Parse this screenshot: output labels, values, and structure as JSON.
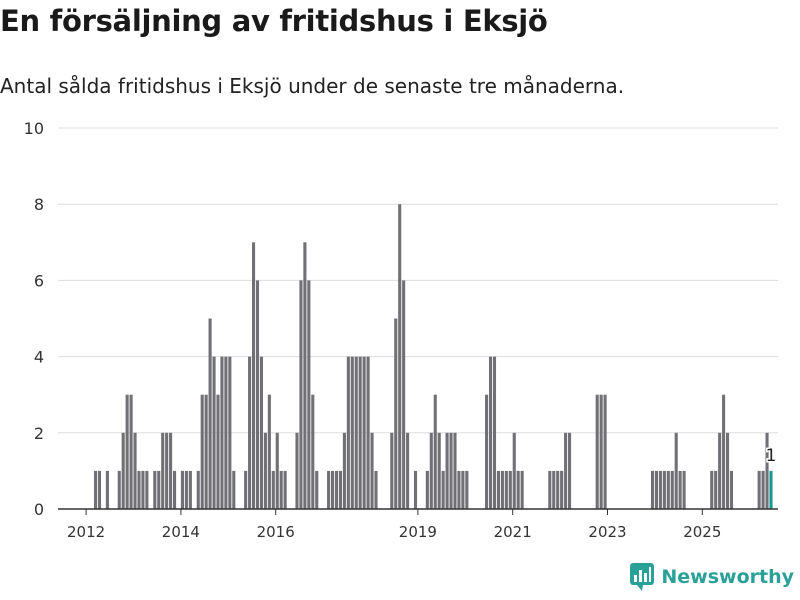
{
  "header": {
    "title": "En försäljning av fritidshus i Eksjö",
    "subtitle": "Antal sålda fritidshus i Eksjö under de senaste tre månaderna."
  },
  "brand": {
    "name": "Newsworthy",
    "icon": "newsworthy-logo-icon",
    "color": "#2aa198"
  },
  "colors": {
    "bar": "#717074",
    "highlight": "#17998f",
    "grid": "#dddddd",
    "axis": "#333333"
  },
  "chart_data": {
    "type": "bar",
    "title": "En försäljning av fritidshus i Eksjö",
    "subtitle": "Antal sålda fritidshus i Eksjö under de senaste tre månaderna.",
    "xlabel": "",
    "ylabel": "",
    "ylim": [
      0,
      10
    ],
    "yticks": [
      0,
      2,
      4,
      6,
      8,
      10
    ],
    "xticks": [
      "2012",
      "2014",
      "2016",
      "2019",
      "2021",
      "2023",
      "2025"
    ],
    "grid": true,
    "highlight_label": "1",
    "series": [
      {
        "values": [
          1,
          1,
          0,
          1,
          0,
          0,
          1,
          2,
          3,
          3,
          2,
          1,
          1,
          1,
          0,
          1,
          1,
          2,
          2,
          2,
          1,
          0,
          1,
          1,
          1,
          0,
          1,
          3,
          3,
          5,
          4,
          3,
          4,
          4,
          4,
          1,
          0,
          0,
          1,
          4,
          7,
          6,
          4,
          2,
          3,
          1,
          2,
          1,
          1,
          0,
          0,
          2,
          6,
          7,
          6,
          3,
          1,
          0,
          0,
          1,
          1,
          1,
          1,
          2,
          4,
          4,
          4,
          4,
          4,
          4,
          2,
          1,
          0,
          0,
          0,
          2,
          5,
          8,
          6,
          2,
          0,
          1,
          0,
          0,
          1,
          2,
          3,
          2,
          1,
          2,
          2,
          2,
          1,
          1,
          1,
          0,
          0,
          0,
          0,
          3,
          4,
          4,
          1,
          1,
          1,
          1,
          2,
          1,
          1,
          0,
          0,
          0,
          0,
          0,
          0,
          1,
          1,
          1,
          1,
          2,
          2,
          0,
          0,
          0,
          0,
          0,
          0,
          3,
          3,
          3,
          0,
          0,
          0,
          0,
          0,
          0,
          0,
          0,
          0,
          0,
          0,
          1,
          1,
          1,
          1,
          1,
          1,
          2,
          1,
          1,
          0,
          0,
          0,
          0,
          0,
          0,
          1,
          1,
          2,
          3,
          2,
          1,
          0,
          0,
          0,
          0,
          0,
          0,
          1,
          1,
          2,
          1
        ],
        "highlight_last": true
      }
    ]
  }
}
